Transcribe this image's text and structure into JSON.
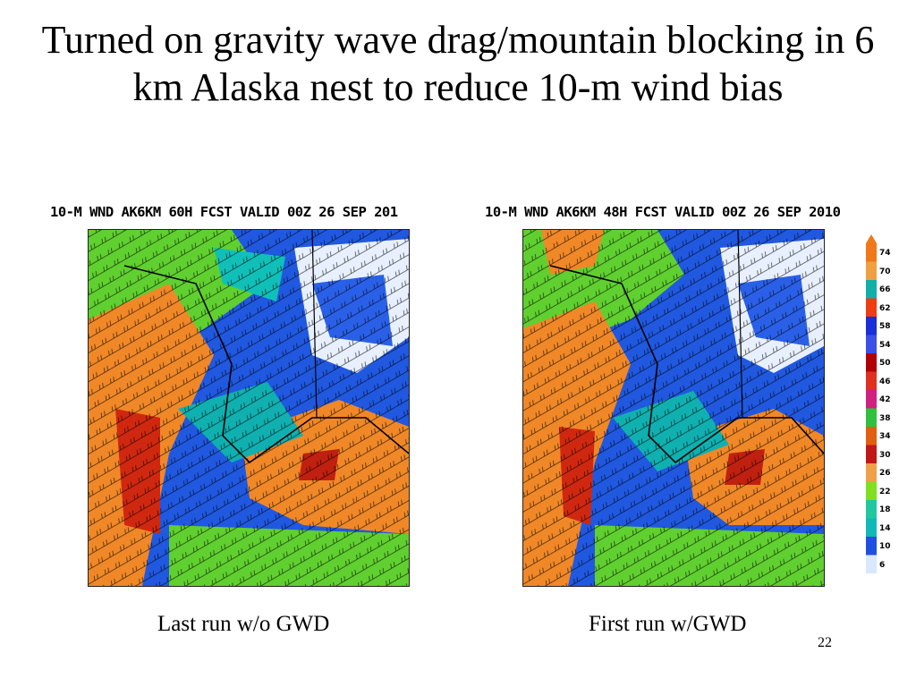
{
  "title": "Turned on gravity wave drag/mountain blocking in 6 km Alaska nest to reduce 10-m wind bias",
  "maps": {
    "left": {
      "header": "10-M WND AK6KM 60H FCST VALID 00Z 26 SEP 201",
      "caption": "Last run w/o GWD"
    },
    "right": {
      "header": "10-M WND AK6KM 48H FCST VALID 00Z 26 SEP 2010",
      "caption": "First run w/GWD"
    }
  },
  "colorbar": {
    "labels": [
      "74",
      "70",
      "66",
      "62",
      "58",
      "54",
      "50",
      "46",
      "42",
      "38",
      "34",
      "30",
      "26",
      "22",
      "18",
      "14",
      "10",
      "6"
    ],
    "colors": [
      "#f07818",
      "#f0a040",
      "#10b0a8",
      "#f03c10",
      "#1830d8",
      "#3c50e8",
      "#b00000",
      "#e03020",
      "#d02080",
      "#30c040",
      "#e06010",
      "#c01818",
      "#f0a048",
      "#80e020",
      "#20c8a0",
      "#10b8b8",
      "#2050e0",
      "#d8e8ff"
    ]
  },
  "slide_number": "22"
}
